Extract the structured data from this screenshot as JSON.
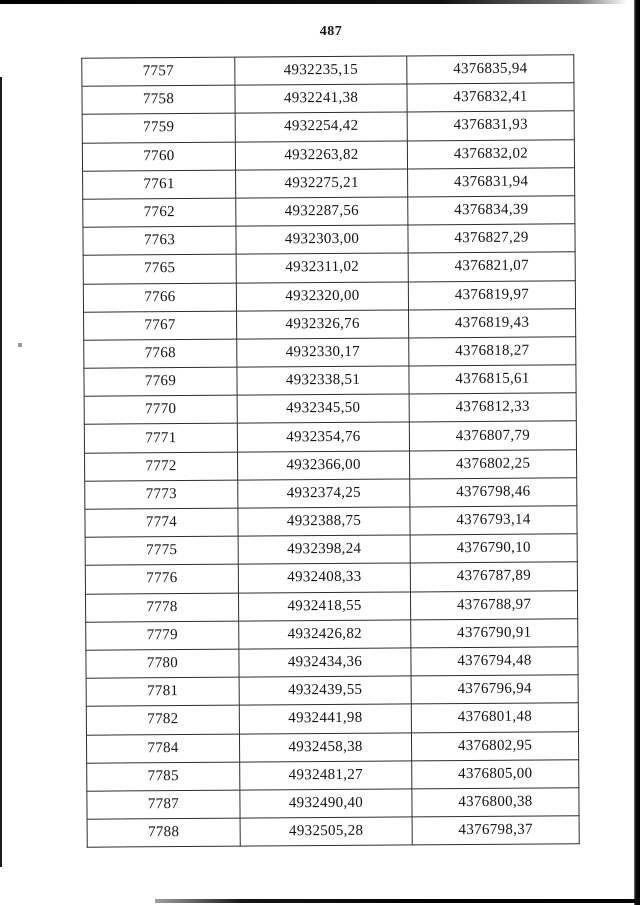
{
  "page": {
    "number": "487",
    "background_color": "#ffffff",
    "ink_color": "#151515",
    "table_border_color": "#2e2e2e"
  },
  "table": {
    "rows": [
      [
        "7757",
        "4932235,15",
        "4376835,94"
      ],
      [
        "7758",
        "4932241,38",
        "4376832,41"
      ],
      [
        "7759",
        "4932254,42",
        "4376831,93"
      ],
      [
        "7760",
        "4932263,82",
        "4376832,02"
      ],
      [
        "7761",
        "4932275,21",
        "4376831,94"
      ],
      [
        "7762",
        "4932287,56",
        "4376834,39"
      ],
      [
        "7763",
        "4932303,00",
        "4376827,29"
      ],
      [
        "7765",
        "4932311,02",
        "4376821,07"
      ],
      [
        "7766",
        "4932320,00",
        "4376819,97"
      ],
      [
        "7767",
        "4932326,76",
        "4376819,43"
      ],
      [
        "7768",
        "4932330,17",
        "4376818,27"
      ],
      [
        "7769",
        "4932338,51",
        "4376815,61"
      ],
      [
        "7770",
        "4932345,50",
        "4376812,33"
      ],
      [
        "7771",
        "4932354,76",
        "4376807,79"
      ],
      [
        "7772",
        "4932366,00",
        "4376802,25"
      ],
      [
        "7773",
        "4932374,25",
        "4376798,46"
      ],
      [
        "7774",
        "4932388,75",
        "4376793,14"
      ],
      [
        "7775",
        "4932398,24",
        "4376790,10"
      ],
      [
        "7776",
        "4932408,33",
        "4376787,89"
      ],
      [
        "7778",
        "4932418,55",
        "4376788,97"
      ],
      [
        "7779",
        "4932426,82",
        "4376790,91"
      ],
      [
        "7780",
        "4932434,36",
        "4376794,48"
      ],
      [
        "7781",
        "4932439,55",
        "4376796,94"
      ],
      [
        "7782",
        "4932441,98",
        "4376801,48"
      ],
      [
        "7784",
        "4932458,38",
        "4376802,95"
      ],
      [
        "7785",
        "4932481,27",
        "4376805,00"
      ],
      [
        "7787",
        "4932490,40",
        "4376800,38"
      ],
      [
        "7788",
        "4932505,28",
        "4376798,37"
      ]
    ]
  }
}
